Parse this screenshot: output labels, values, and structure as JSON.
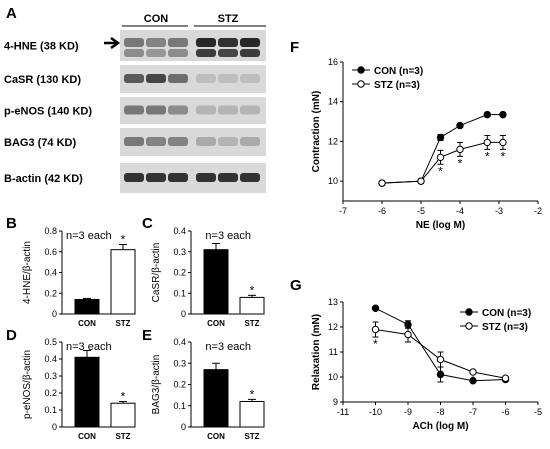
{
  "panels": {
    "A": "A",
    "B": "B",
    "C": "C",
    "D": "D",
    "E": "E",
    "F": "F",
    "G": "G"
  },
  "blot": {
    "group_labels": [
      "CON",
      "STZ"
    ],
    "rows": [
      {
        "label": "4-HNE (38 KD)",
        "con": [
          0.55,
          0.5,
          0.55
        ],
        "stz": [
          0.95,
          0.9,
          0.95
        ],
        "con2": [
          0.45,
          0.4,
          0.45
        ],
        "stz2": [
          0.85,
          0.8,
          0.85
        ]
      },
      {
        "label": "CaSR (130 KD)",
        "con": [
          0.7,
          0.8,
          0.6
        ],
        "stz": [
          0.2,
          0.2,
          0.2
        ]
      },
      {
        "label": "p-eNOS (140 KD)",
        "con": [
          0.55,
          0.55,
          0.45
        ],
        "stz": [
          0.25,
          0.25,
          0.25
        ]
      },
      {
        "label": "BAG3 (74 KD)",
        "con": [
          0.55,
          0.5,
          0.5
        ],
        "stz": [
          0.3,
          0.25,
          0.3
        ]
      },
      {
        "label": "B-actin (42 KD)",
        "con": [
          0.9,
          0.9,
          0.9
        ],
        "stz": [
          0.9,
          0.9,
          0.9
        ]
      }
    ]
  },
  "chart_data": [
    {
      "panel": "B",
      "type": "bar",
      "categories": [
        "CON",
        "STZ"
      ],
      "values": [
        0.14,
        0.62
      ],
      "errors": [
        0.01,
        0.05
      ],
      "colors": [
        "#000000",
        "#ffffff"
      ],
      "ylabel": "4-HNE/β-actin",
      "ylim": [
        0,
        0.8
      ],
      "yticks": [
        "0",
        "0.2",
        "0.4",
        "0.6",
        "0.8"
      ],
      "annotation": "n=3 each",
      "significance": [
        "",
        "*"
      ]
    },
    {
      "panel": "C",
      "type": "bar",
      "categories": [
        "CON",
        "STZ"
      ],
      "values": [
        0.31,
        0.08
      ],
      "errors": [
        0.03,
        0.01
      ],
      "colors": [
        "#000000",
        "#ffffff"
      ],
      "ylabel": "CaSR/β-actin",
      "ylim": [
        0,
        0.4
      ],
      "yticks": [
        "0",
        "0.1",
        "0.2",
        "0.3",
        "0.4"
      ],
      "annotation": "n=3 each",
      "significance": [
        "",
        "*"
      ]
    },
    {
      "panel": "D",
      "type": "bar",
      "categories": [
        "CON",
        "STZ"
      ],
      "values": [
        0.41,
        0.14
      ],
      "errors": [
        0.04,
        0.01
      ],
      "colors": [
        "#000000",
        "#ffffff"
      ],
      "ylabel": "p-eNOS/β-actin",
      "ylim": [
        0,
        0.5
      ],
      "yticks": [
        "0",
        "0.1",
        "0.2",
        "0.3",
        "0.4",
        "0.5"
      ],
      "annotation": "n=3 each",
      "significance": [
        "",
        "*"
      ]
    },
    {
      "panel": "E",
      "type": "bar",
      "categories": [
        "CON",
        "STZ"
      ],
      "values": [
        0.27,
        0.12
      ],
      "errors": [
        0.03,
        0.01
      ],
      "colors": [
        "#000000",
        "#ffffff"
      ],
      "ylabel": "BAG3/β-actin",
      "ylim": [
        0,
        0.4
      ],
      "yticks": [
        "0",
        "0.1",
        "0.2",
        "0.3",
        "0.4"
      ],
      "annotation": "n=3 each",
      "significance": [
        "",
        "*"
      ]
    },
    {
      "panel": "F",
      "type": "line",
      "xlabel": "NE (log M)",
      "ylabel": "Contraction (mN)",
      "xlim": [
        -7,
        -2
      ],
      "ylim": [
        9,
        16
      ],
      "xticks": [
        "-7",
        "-6",
        "-5",
        "-4",
        "-3",
        "-2"
      ],
      "yticks": [
        "10",
        "12",
        "14",
        "16"
      ],
      "legend_position": "top-left",
      "series": [
        {
          "name": "CON (n=3)",
          "marker": "filled",
          "x": [
            -6,
            -5,
            -4.5,
            -4,
            -3.3,
            -2.9
          ],
          "y": [
            9.9,
            10.0,
            12.2,
            12.8,
            13.35,
            13.35
          ],
          "err": [
            0.1,
            0.1,
            0.15,
            0.1,
            0.1,
            0.1
          ]
        },
        {
          "name": "STZ (n=3)",
          "marker": "open",
          "x": [
            -6,
            -5,
            -4.5,
            -4,
            -3.3,
            -2.9
          ],
          "y": [
            9.9,
            10.0,
            11.2,
            11.6,
            11.95,
            11.95
          ],
          "err": [
            0.1,
            0.1,
            0.35,
            0.35,
            0.35,
            0.35
          ],
          "significance": [
            "",
            "",
            "*",
            "*",
            "*",
            "*"
          ]
        }
      ]
    },
    {
      "panel": "G",
      "type": "line",
      "xlabel": "ACh (log M)",
      "ylabel": "Relaxation (mN)",
      "xlim": [
        -11,
        -5
      ],
      "ylim": [
        9,
        13
      ],
      "xticks": [
        "-11",
        "-10",
        "-9",
        "-8",
        "-7",
        "-6",
        "-5"
      ],
      "yticks": [
        "9",
        "10",
        "11",
        "12",
        "13"
      ],
      "legend_position": "top-right",
      "series": [
        {
          "name": "CON (n=3)",
          "marker": "filled",
          "x": [
            -10,
            -9,
            -8,
            -7,
            -6
          ],
          "y": [
            12.75,
            12.1,
            10.1,
            9.85,
            9.9
          ],
          "err": [
            0.05,
            0.15,
            0.3,
            0.05,
            0.05
          ]
        },
        {
          "name": "STZ (n=3)",
          "marker": "open",
          "x": [
            -10,
            -9,
            -8,
            -7,
            -6
          ],
          "y": [
            11.9,
            11.7,
            10.7,
            10.2,
            9.95
          ],
          "err": [
            0.3,
            0.3,
            0.3,
            0.05,
            0.05
          ],
          "significance": [
            "*",
            "",
            "*",
            "*",
            ""
          ]
        }
      ]
    }
  ]
}
